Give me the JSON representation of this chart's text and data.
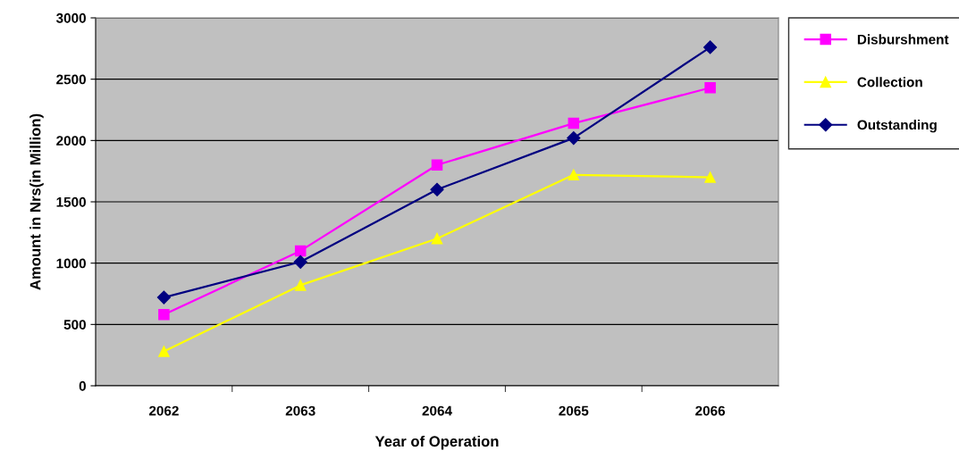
{
  "chart_data": {
    "type": "line",
    "xlabel": "Year of Operation",
    "ylabel": "Amount in Nrs(in Million)",
    "categories": [
      "2062",
      "2063",
      "2064",
      "2065",
      "2066"
    ],
    "series": [
      {
        "name": "Disburshment",
        "color": "#ff00ff",
        "marker": "square",
        "values": [
          580,
          1100,
          1800,
          2140,
          2430
        ]
      },
      {
        "name": "Collection",
        "color": "#ffff00",
        "marker": "triangle",
        "values": [
          280,
          820,
          1200,
          1720,
          1700
        ]
      },
      {
        "name": "Outstanding",
        "color": "#000080",
        "marker": "diamond",
        "values": [
          720,
          1010,
          1600,
          2020,
          2760
        ]
      }
    ],
    "ylim": [
      0,
      3000
    ],
    "yticks": [
      0,
      500,
      1000,
      1500,
      2000,
      2500,
      3000
    ],
    "grid": "y",
    "legend": "right"
  }
}
